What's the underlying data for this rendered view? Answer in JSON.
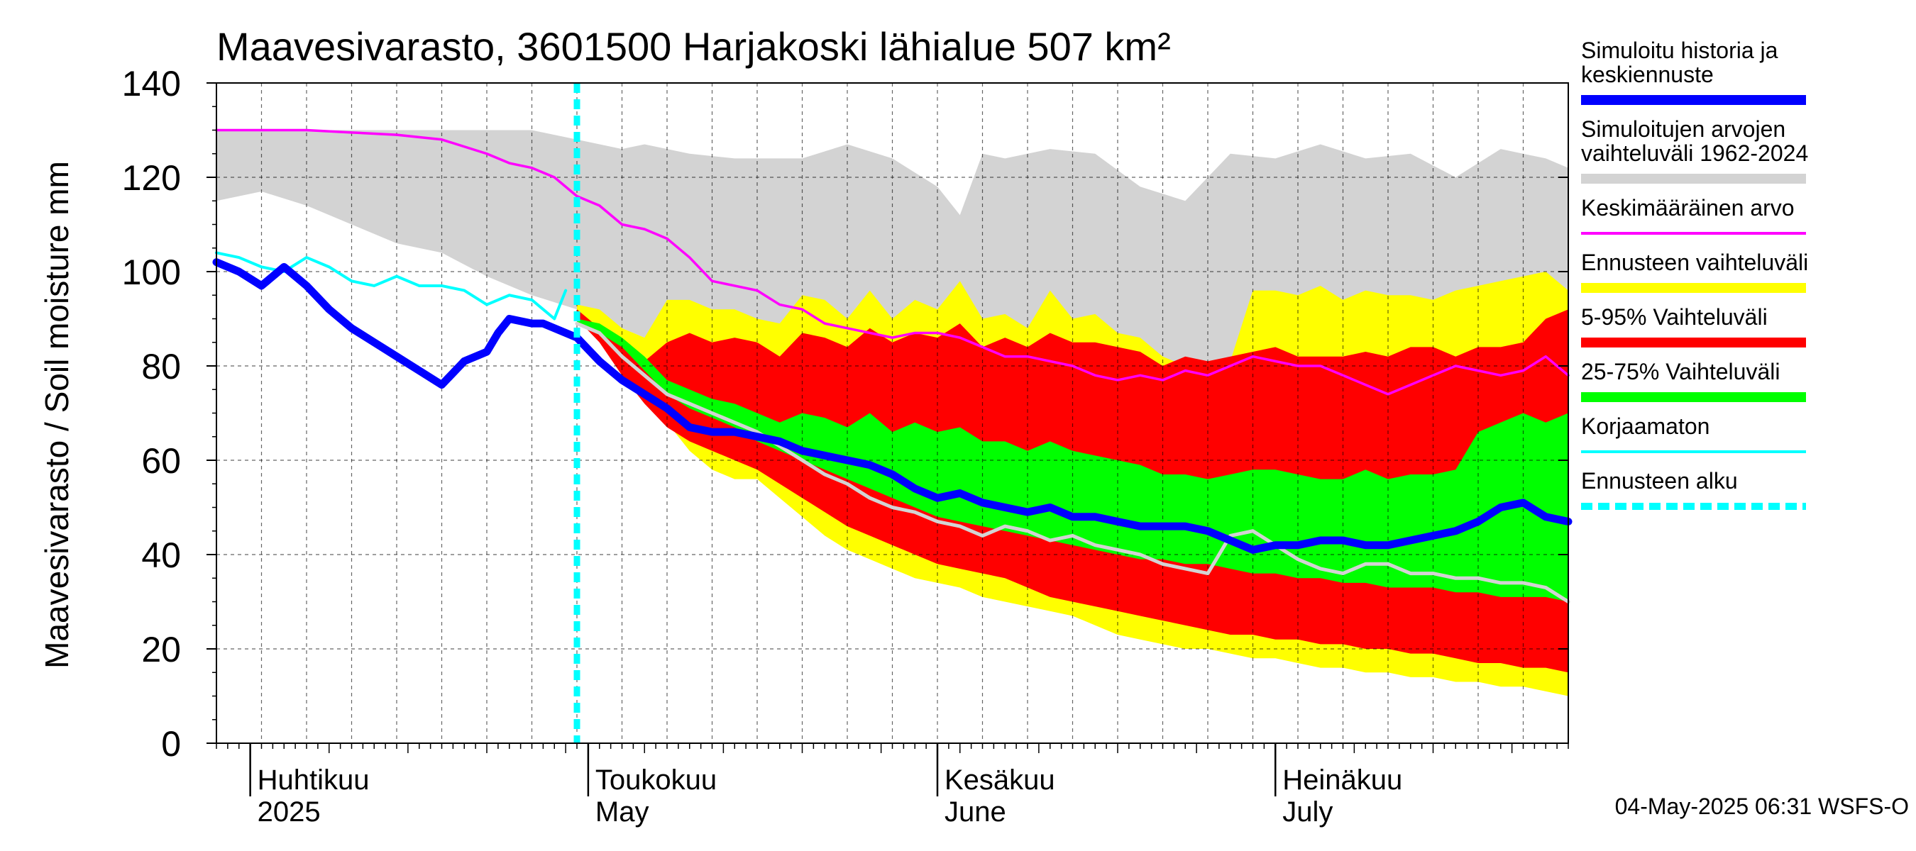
{
  "chart_data": {
    "type": "area",
    "title": "Maavesivarasto, 3601500 Harjakoski lähialue 507 km²",
    "ylabel": "Maavesivarasto / Soil moisture   mm",
    "xlabel": "",
    "ylim": [
      0,
      140
    ],
    "yticks": [
      0,
      20,
      40,
      60,
      80,
      100,
      120,
      140
    ],
    "x_unit": "day of year 2025",
    "xlim": [
      88,
      208
    ],
    "forecast_start_day": 120,
    "month_labels": [
      {
        "day": 91,
        "fi": "Huhtikuu",
        "en": "2025"
      },
      {
        "day": 121,
        "fi": "Toukokuu",
        "en": "May"
      },
      {
        "day": 152,
        "fi": "Kesäkuu",
        "en": "June"
      },
      {
        "day": 182,
        "fi": "Heinäkuu",
        "en": "July"
      }
    ],
    "legend": [
      {
        "label": "Simuloitu historia ja keskiennuste",
        "color": "#0000ff",
        "style": "thick"
      },
      {
        "label": "Simuloitujen arvojen vaihteluväli 1962-2024",
        "color": "#d3d3d3",
        "style": "thick"
      },
      {
        "label": "Keskimääräinen arvo",
        "color": "#ff00ff",
        "style": "thin"
      },
      {
        "label": "Ennusteen vaihteluväli",
        "color": "#ffff00",
        "style": "thick"
      },
      {
        "label": "5-95% Vaihteluväli",
        "color": "#ff0000",
        "style": "thick"
      },
      {
        "label": "25-75% Vaihteluväli",
        "color": "#00ff00",
        "style": "thick"
      },
      {
        "label": "Korjaamaton",
        "color": "#00ffff",
        "style": "thin"
      },
      {
        "label": "Ennusteen alku",
        "color": "#00ffff",
        "style": "dashed"
      }
    ],
    "series": [
      {
        "name": "Simuloitujen arvojen vaihteluväli 1962-2024",
        "kind": "band",
        "color": "#d3d3d3",
        "x": [
          88,
          92,
          96,
          100,
          104,
          108,
          112,
          116,
          120,
          124,
          126,
          130,
          134,
          140,
          144,
          148,
          152,
          154,
          156,
          158,
          162,
          166,
          170,
          174,
          178,
          182,
          186,
          190,
          194,
          198,
          202,
          206,
          208
        ],
        "lower": [
          115,
          117,
          114,
          110,
          106,
          104,
          99,
          95,
          92,
          88,
          86,
          86,
          85,
          84,
          85,
          84,
          84,
          83,
          83,
          84,
          83,
          82,
          80,
          79,
          79,
          79,
          80,
          80,
          80,
          80,
          80,
          80,
          80
        ],
        "upper": [
          130,
          130,
          130,
          130,
          130,
          130,
          130,
          130,
          128,
          126,
          127,
          125,
          124,
          124,
          127,
          124,
          118,
          112,
          125,
          124,
          126,
          125,
          118,
          115,
          125,
          124,
          127,
          124,
          125,
          120,
          126,
          124,
          122
        ]
      },
      {
        "name": "Ennusteen vaihteluväli",
        "kind": "band",
        "color": "#ffff00",
        "x": [
          120,
          122,
          124,
          126,
          128,
          130,
          132,
          134,
          136,
          138,
          140,
          142,
          144,
          146,
          148,
          150,
          152,
          154,
          156,
          158,
          160,
          162,
          164,
          166,
          168,
          170,
          172,
          174,
          176,
          178,
          180,
          182,
          184,
          186,
          188,
          190,
          192,
          194,
          196,
          198,
          200,
          202,
          204,
          206,
          208
        ],
        "lower": [
          90,
          86,
          82,
          75,
          68,
          62,
          58,
          56,
          56,
          52,
          48,
          44,
          41,
          39,
          37,
          35,
          34,
          33,
          31,
          30,
          29,
          28,
          27,
          25,
          23,
          22,
          21,
          20,
          20,
          19,
          18,
          18,
          17,
          16,
          16,
          15,
          15,
          14,
          14,
          13,
          13,
          12,
          12,
          11,
          10
        ],
        "upper": [
          93,
          92,
          88,
          86,
          94,
          94,
          92,
          92,
          90,
          89,
          95,
          94,
          90,
          96,
          90,
          94,
          92,
          98,
          90,
          91,
          88,
          96,
          90,
          91,
          87,
          86,
          82,
          80,
          80,
          81,
          96,
          96,
          95,
          97,
          94,
          96,
          95,
          95,
          94,
          96,
          97,
          98,
          99,
          100,
          96
        ]
      },
      {
        "name": "5-95% Vaihteluväli",
        "kind": "band",
        "color": "#ff0000",
        "x": [
          120,
          122,
          124,
          126,
          128,
          130,
          132,
          134,
          136,
          138,
          140,
          142,
          144,
          146,
          148,
          150,
          152,
          154,
          156,
          158,
          160,
          162,
          164,
          166,
          168,
          170,
          172,
          174,
          176,
          178,
          180,
          182,
          184,
          186,
          188,
          190,
          192,
          194,
          196,
          198,
          200,
          202,
          204,
          206,
          208
        ],
        "lower": [
          90,
          85,
          78,
          72,
          67,
          64,
          62,
          60,
          58,
          55,
          52,
          49,
          46,
          44,
          42,
          40,
          38,
          37,
          36,
          35,
          33,
          31,
          30,
          29,
          28,
          27,
          26,
          25,
          24,
          23,
          23,
          22,
          22,
          21,
          21,
          20,
          20,
          19,
          19,
          18,
          17,
          17,
          16,
          16,
          15
        ],
        "upper": [
          92,
          88,
          84,
          81,
          85,
          87,
          85,
          86,
          85,
          82,
          87,
          86,
          84,
          88,
          85,
          87,
          86,
          89,
          84,
          86,
          84,
          87,
          85,
          85,
          84,
          83,
          80,
          82,
          81,
          82,
          83,
          84,
          82,
          82,
          82,
          83,
          82,
          84,
          84,
          82,
          84,
          84,
          85,
          90,
          92
        ]
      },
      {
        "name": "25-75% Vaihteluväli",
        "kind": "band",
        "color": "#00ff00",
        "x": [
          120,
          122,
          124,
          126,
          128,
          130,
          132,
          134,
          136,
          138,
          140,
          142,
          144,
          146,
          148,
          150,
          152,
          154,
          156,
          158,
          160,
          162,
          164,
          166,
          168,
          170,
          172,
          174,
          176,
          178,
          180,
          182,
          184,
          186,
          188,
          190,
          192,
          194,
          196,
          198,
          200,
          202,
          204,
          206,
          208
        ],
        "lower": [
          89,
          87,
          84,
          79,
          74,
          71,
          69,
          67,
          64,
          62,
          60,
          58,
          56,
          54,
          52,
          50,
          48,
          47,
          46,
          45,
          44,
          43,
          42,
          41,
          40,
          39,
          39,
          38,
          38,
          37,
          36,
          36,
          35,
          35,
          34,
          34,
          33,
          33,
          33,
          32,
          32,
          31,
          31,
          31,
          30
        ],
        "upper": [
          90,
          89,
          86,
          82,
          77,
          75,
          73,
          72,
          70,
          68,
          70,
          69,
          67,
          70,
          66,
          68,
          66,
          67,
          64,
          64,
          62,
          64,
          62,
          61,
          60,
          59,
          57,
          57,
          56,
          57,
          58,
          58,
          57,
          56,
          56,
          58,
          56,
          57,
          57,
          58,
          66,
          68,
          70,
          68,
          70
        ]
      },
      {
        "name": "Keskimääräinen arvo",
        "kind": "line",
        "color": "#ff00ff",
        "x": [
          88,
          92,
          96,
          100,
          104,
          108,
          112,
          114,
          116,
          118,
          120,
          122,
          124,
          126,
          128,
          130,
          132,
          134,
          136,
          138,
          140,
          142,
          144,
          146,
          148,
          150,
          152,
          154,
          156,
          158,
          160,
          162,
          164,
          166,
          168,
          170,
          172,
          174,
          176,
          178,
          180,
          182,
          184,
          186,
          188,
          190,
          192,
          194,
          196,
          198,
          200,
          202,
          204,
          206,
          208
        ],
        "values": [
          130,
          130,
          130,
          129.5,
          129,
          128,
          125,
          123,
          122,
          120,
          116,
          114,
          110,
          109,
          107,
          103,
          98,
          97,
          96,
          93,
          92,
          89,
          88,
          87,
          86,
          87,
          87,
          86,
          84,
          82,
          82,
          81,
          80,
          78,
          77,
          78,
          77,
          79,
          78,
          80,
          82,
          81,
          80,
          80,
          78,
          76,
          74,
          76,
          78,
          80,
          79,
          78,
          79,
          82,
          78
        ]
      },
      {
        "name": "Korjaamaton",
        "kind": "line",
        "color": "#00ffff",
        "x": [
          88,
          90,
          92,
          94,
          96,
          98,
          100,
          102,
          104,
          106,
          108,
          110,
          112,
          114,
          116,
          118,
          119
        ],
        "values": [
          104,
          103,
          101,
          100,
          103,
          101,
          98,
          97,
          99,
          97,
          97,
          96,
          93,
          95,
          94,
          90,
          96
        ]
      },
      {
        "name": "Simuloitu historia ja keskiennuste",
        "kind": "line",
        "color": "#0000ff",
        "x": [
          88,
          90,
          92,
          94,
          96,
          98,
          100,
          102,
          104,
          106,
          108,
          110,
          112,
          113,
          114,
          116,
          117,
          118,
          120,
          122,
          124,
          126,
          128,
          130,
          132,
          134,
          136,
          138,
          140,
          142,
          144,
          146,
          148,
          150,
          152,
          154,
          156,
          158,
          160,
          162,
          164,
          166,
          168,
          170,
          172,
          174,
          176,
          178,
          180,
          182,
          184,
          186,
          188,
          190,
          192,
          194,
          196,
          198,
          200,
          202,
          204,
          206,
          208
        ],
        "values": [
          102,
          100,
          97,
          101,
          97,
          92,
          88,
          85,
          82,
          79,
          76,
          81,
          83,
          87,
          90,
          89,
          89,
          88,
          86,
          81,
          77,
          74,
          71,
          67,
          66,
          66,
          65,
          64,
          62,
          61,
          60,
          59,
          57,
          54,
          52,
          53,
          51,
          50,
          49,
          50,
          48,
          48,
          47,
          46,
          46,
          46,
          45,
          43,
          41,
          42,
          42,
          43,
          43,
          42,
          42,
          43,
          44,
          45,
          47,
          50,
          51,
          48,
          47
        ]
      },
      {
        "name": "Unnamed simulated line",
        "kind": "line",
        "color": "#d3d3d3",
        "x": [
          120,
          122,
          124,
          126,
          128,
          130,
          132,
          134,
          136,
          138,
          140,
          142,
          144,
          146,
          148,
          150,
          152,
          154,
          156,
          158,
          160,
          162,
          164,
          166,
          168,
          170,
          172,
          174,
          176,
          178,
          180,
          182,
          184,
          186,
          188,
          190,
          192,
          194,
          196,
          198,
          200,
          202,
          204,
          206,
          208
        ],
        "values": [
          89,
          87,
          82,
          78,
          74,
          72,
          70,
          68,
          66,
          63,
          60,
          57,
          55,
          52,
          50,
          49,
          47,
          46,
          44,
          46,
          45,
          43,
          44,
          42,
          41,
          40,
          38,
          37,
          36,
          44,
          45,
          42,
          39,
          37,
          36,
          38,
          38,
          36,
          36,
          35,
          35,
          34,
          34,
          33,
          30
        ]
      }
    ]
  },
  "footer": {
    "timestamp": "04-May-2025 06:31 WSFS-O"
  }
}
